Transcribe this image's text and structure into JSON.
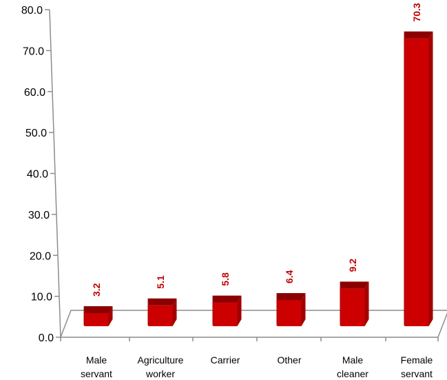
{
  "chart_data": {
    "type": "bar",
    "title": "",
    "xlabel": "",
    "ylabel": "",
    "ylim": [
      0,
      80
    ],
    "yticks": [
      "0.0",
      "10.0",
      "20.0",
      "30.0",
      "40.0",
      "50.0",
      "60.0",
      "70.0",
      "80.0"
    ],
    "categories": [
      [
        "Male",
        "servant"
      ],
      [
        "Agriculture",
        "worker"
      ],
      [
        "Carrier"
      ],
      [
        "Other"
      ],
      [
        "Male",
        "cleaner"
      ],
      [
        "Female",
        "servant"
      ]
    ],
    "values": [
      3.2,
      5.1,
      5.8,
      6.4,
      9.2,
      70.3
    ],
    "value_labels": [
      "3.2",
      "5.1",
      "5.8",
      "6.4",
      "9.2",
      "70.3"
    ],
    "grid": false,
    "style": "3d",
    "colors": {
      "bar_front": "#cc0000",
      "bar_side": "#a30000",
      "bar_top": "#8b0000",
      "data_label": "#c00000",
      "axis": "#8c8c8c"
    }
  }
}
